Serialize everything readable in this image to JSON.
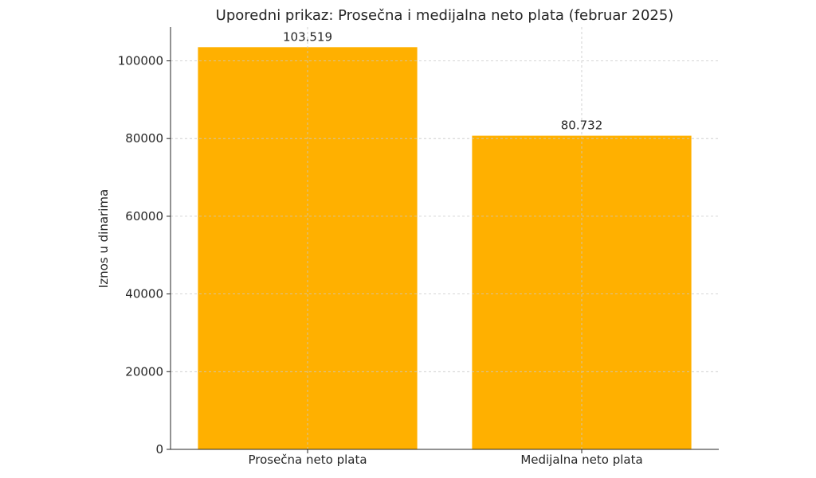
{
  "chart_data": {
    "type": "bar",
    "title": "Uporedni prikaz: Prosečna i medijalna neto plata (februar 2025)",
    "xlabel": "",
    "ylabel": "Iznos u dinarima",
    "categories": [
      "Prosečna neto plata",
      "Medijalna neto plata"
    ],
    "values": [
      103519,
      80732
    ],
    "data_labels": [
      "103.519",
      "80.732"
    ],
    "ylim": [
      0,
      108700
    ],
    "yticks": [
      0,
      20000,
      40000,
      60000,
      80000,
      100000
    ],
    "ytick_labels": [
      "0",
      "20000",
      "40000",
      "60000",
      "80000",
      "100000"
    ],
    "grid": true,
    "bar_color": "#ffb000"
  }
}
